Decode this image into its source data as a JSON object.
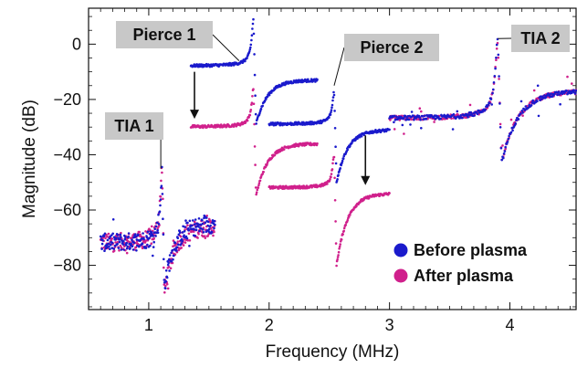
{
  "chart_data": {
    "type": "scatter",
    "title": "",
    "xlabel": "Frequency (MHz)",
    "ylabel": "Magnitude (dB)",
    "xlim": [
      0.5,
      4.55
    ],
    "ylim": [
      -96,
      13
    ],
    "xticks": [
      1,
      2,
      3,
      4
    ],
    "xtick_labels": [
      "1",
      "2",
      "3",
      "4"
    ],
    "yticks": [
      0,
      -20,
      -40,
      -60,
      -80
    ],
    "ytick_labels": [
      "0",
      "−20",
      "−40",
      "−60",
      "−80"
    ],
    "grid": false,
    "legend_position": "bottom-right",
    "series": [
      {
        "name": "Before plasma",
        "color": "#1a1acc"
      },
      {
        "name": "After plasma",
        "color": "#d0208c"
      }
    ],
    "segments": [
      {
        "label": "TIA 1",
        "range_mhz": [
          0.6,
          1.55
        ],
        "resonance_mhz": 1.11,
        "before": {
          "baseline_db": -72,
          "peak_db": -47,
          "dip_db": -88,
          "tail_db": -65
        },
        "after": {
          "baseline_db": -72,
          "peak_db": -44,
          "dip_db": -90,
          "tail_db": -66
        }
      },
      {
        "label": "Pierce 1",
        "range_mhz": [
          1.35,
          2.4
        ],
        "resonance_mhz": 1.87,
        "before": {
          "baseline_db": -8,
          "peak_db": 9,
          "dip_db": -29,
          "tail_db": -13
        },
        "after": {
          "baseline_db": -30,
          "peak_db": -16,
          "dip_db": -55,
          "tail_db": -36
        }
      },
      {
        "label": "Pierce 2",
        "range_mhz": [
          2.0,
          3.0
        ],
        "resonance_mhz": 2.54,
        "before": {
          "baseline_db": -29,
          "peak_db": -17,
          "dip_db": -50,
          "tail_db": -31
        },
        "after": {
          "baseline_db": -52,
          "peak_db": -40,
          "dip_db": -80,
          "tail_db": -54
        }
      },
      {
        "label": "TIA 2",
        "range_mhz": [
          3.0,
          4.55
        ],
        "resonance_mhz": 3.9,
        "before": {
          "baseline_db": -27,
          "peak_db": 2,
          "dip_db": -43,
          "tail_db": -17
        },
        "after": {
          "baseline_db": -27,
          "peak_db": 1,
          "dip_db": -43,
          "tail_db": -17
        }
      }
    ],
    "annotations": [
      {
        "text": "TIA 1",
        "points_to_mhz": 1.1,
        "points_to_db": -45
      },
      {
        "text": "Pierce 1",
        "points_to_mhz": 1.75,
        "points_to_db": -6
      },
      {
        "text": "Pierce 2",
        "points_to_mhz": 2.54,
        "points_to_db": -15
      },
      {
        "text": "TIA 2",
        "points_to_mhz": 3.9,
        "points_to_db": 2
      }
    ],
    "arrows": [
      {
        "x_mhz": 1.38,
        "from_db": -10,
        "to_db": -27
      },
      {
        "x_mhz": 2.8,
        "from_db": -33,
        "to_db": -51
      }
    ]
  }
}
